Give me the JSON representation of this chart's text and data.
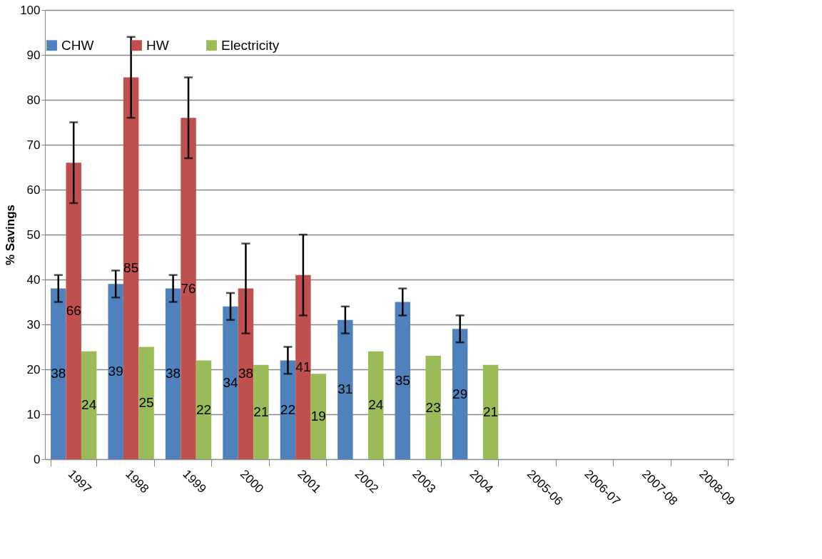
{
  "chart_data": {
    "type": "bar",
    "ylabel": "% Savings",
    "categories": [
      "1997",
      "1998",
      "1999",
      "2000",
      "2001",
      "2002",
      "2003",
      "2004",
      "2005-06",
      "2006-07",
      "2007-08",
      "2008-09"
    ],
    "series": [
      {
        "name": "CHW",
        "color": "#4f81bd",
        "values": [
          38,
          39,
          38,
          34,
          22,
          31,
          35,
          29,
          null,
          null,
          null,
          null
        ],
        "errors": [
          3,
          3,
          3,
          3,
          3,
          3,
          3,
          3,
          null,
          null,
          null,
          null
        ]
      },
      {
        "name": "HW",
        "color": "#c0504d",
        "values": [
          66,
          85,
          76,
          38,
          41,
          null,
          null,
          null,
          null,
          null,
          null,
          null
        ],
        "errors": [
          9,
          9,
          9,
          10,
          9,
          null,
          null,
          null,
          null,
          null,
          null,
          null
        ]
      },
      {
        "name": "Electricity",
        "color": "#9bbb59",
        "values": [
          24,
          25,
          22,
          21,
          19,
          24,
          23,
          21,
          null,
          null,
          null,
          null
        ]
      }
    ],
    "ylim": [
      0,
      100
    ],
    "yticks": [
      0,
      10,
      20,
      30,
      40,
      50,
      60,
      70,
      80,
      90,
      100
    ],
    "grid": "y",
    "legend": "top",
    "data_labels": true
  }
}
